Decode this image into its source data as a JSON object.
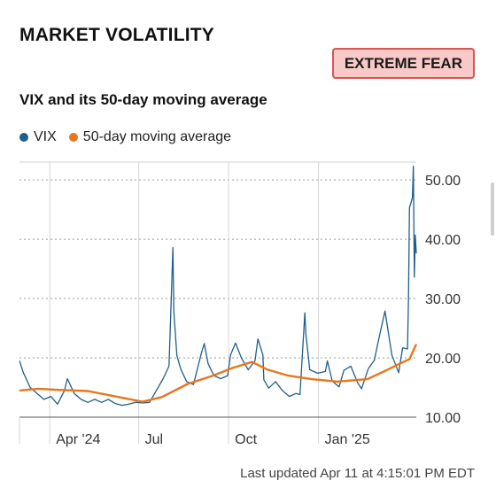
{
  "header": {
    "title": "MARKET VOLATILITY",
    "status_badge": "EXTREME FEAR"
  },
  "colors": {
    "vix": "#1f5f8b",
    "ma": "#e8761c",
    "badge_bg": "#f8c9c6",
    "badge_border": "#d9534f"
  },
  "chart_data": {
    "type": "line",
    "title": "VIX and its 50-day moving average",
    "legend_position": "top-left",
    "grid": true,
    "y_axis": {
      "side": "right",
      "ticks": [
        "50.00",
        "40.00",
        "30.00",
        "20.00",
        "10.00"
      ],
      "ylim": [
        10,
        53
      ]
    },
    "x_axis": {
      "range": [
        "2024-03-01",
        "2025-04-11"
      ],
      "ticks": [
        {
          "date": "2024-04-01",
          "label": "Apr '24"
        },
        {
          "date": "2024-07-01",
          "label": "Jul"
        },
        {
          "date": "2024-10-01",
          "label": "Oct"
        },
        {
          "date": "2025-01-01",
          "label": "Jan '25"
        }
      ]
    },
    "series": [
      {
        "name": "VIX",
        "points": [
          [
            "2024-03-01",
            19.5
          ],
          [
            "2024-03-05",
            17.5
          ],
          [
            "2024-03-12",
            15.0
          ],
          [
            "2024-03-19",
            14.0
          ],
          [
            "2024-03-26",
            13.0
          ],
          [
            "2024-04-02",
            13.5
          ],
          [
            "2024-04-09",
            12.2
          ],
          [
            "2024-04-16",
            14.5
          ],
          [
            "2024-04-19",
            16.5
          ],
          [
            "2024-04-26",
            14.0
          ],
          [
            "2024-05-03",
            13.0
          ],
          [
            "2024-05-10",
            12.5
          ],
          [
            "2024-05-17",
            13.0
          ],
          [
            "2024-05-24",
            12.5
          ],
          [
            "2024-05-31",
            13.0
          ],
          [
            "2024-06-07",
            12.3
          ],
          [
            "2024-06-14",
            12.0
          ],
          [
            "2024-06-21",
            12.2
          ],
          [
            "2024-06-28",
            12.5
          ],
          [
            "2024-07-05",
            12.4
          ],
          [
            "2024-07-12",
            12.5
          ],
          [
            "2024-07-19",
            14.5
          ],
          [
            "2024-07-26",
            16.5
          ],
          [
            "2024-08-01",
            18.6
          ],
          [
            "2024-08-02",
            23.4
          ],
          [
            "2024-08-05",
            38.6
          ],
          [
            "2024-08-06",
            27.7
          ],
          [
            "2024-08-09",
            20.4
          ],
          [
            "2024-08-13",
            18.1
          ],
          [
            "2024-08-19",
            16.0
          ],
          [
            "2024-08-26",
            15.5
          ],
          [
            "2024-09-03",
            20.7
          ],
          [
            "2024-09-06",
            22.4
          ],
          [
            "2024-09-10",
            19.0
          ],
          [
            "2024-09-16",
            17.0
          ],
          [
            "2024-09-23",
            16.5
          ],
          [
            "2024-09-30",
            17.0
          ],
          [
            "2024-10-03",
            20.5
          ],
          [
            "2024-10-08",
            22.5
          ],
          [
            "2024-10-14",
            20.0
          ],
          [
            "2024-10-21",
            18.0
          ],
          [
            "2024-10-28",
            19.5
          ],
          [
            "2024-10-31",
            23.2
          ],
          [
            "2024-11-05",
            20.5
          ],
          [
            "2024-11-06",
            16.3
          ],
          [
            "2024-11-11",
            14.9
          ],
          [
            "2024-11-18",
            16.0
          ],
          [
            "2024-11-25",
            14.5
          ],
          [
            "2024-12-02",
            13.5
          ],
          [
            "2024-12-09",
            14.0
          ],
          [
            "2024-12-13",
            13.8
          ],
          [
            "2024-12-18",
            27.6
          ],
          [
            "2024-12-19",
            24.1
          ],
          [
            "2024-12-23",
            18.0
          ],
          [
            "2024-12-31",
            17.4
          ],
          [
            "2025-01-08",
            17.7
          ],
          [
            "2025-01-10",
            19.5
          ],
          [
            "2025-01-15",
            16.1
          ],
          [
            "2025-01-22",
            15.1
          ],
          [
            "2025-01-27",
            17.9
          ],
          [
            "2025-02-03",
            18.6
          ],
          [
            "2025-02-10",
            15.8
          ],
          [
            "2025-02-14",
            14.8
          ],
          [
            "2025-02-21",
            18.2
          ],
          [
            "2025-02-27",
            19.6
          ],
          [
            "2025-03-04",
            23.5
          ],
          [
            "2025-03-10",
            27.9
          ],
          [
            "2025-03-13",
            24.7
          ],
          [
            "2025-03-17",
            20.5
          ],
          [
            "2025-03-24",
            17.5
          ],
          [
            "2025-03-28",
            21.7
          ],
          [
            "2025-04-02",
            21.5
          ],
          [
            "2025-04-03",
            30.0
          ],
          [
            "2025-04-04",
            45.3
          ],
          [
            "2025-04-07",
            46.98
          ],
          [
            "2025-04-08",
            52.3
          ],
          [
            "2025-04-09",
            33.6
          ],
          [
            "2025-04-10",
            40.7
          ],
          [
            "2025-04-11",
            37.6
          ]
        ]
      },
      {
        "name": "50-day moving average",
        "points": [
          [
            "2024-03-01",
            14.5
          ],
          [
            "2024-03-20",
            14.8
          ],
          [
            "2024-04-10",
            14.6
          ],
          [
            "2024-05-10",
            14.4
          ],
          [
            "2024-06-10",
            13.4
          ],
          [
            "2024-07-05",
            12.6
          ],
          [
            "2024-07-25",
            13.4
          ],
          [
            "2024-08-20",
            15.6
          ],
          [
            "2024-09-15",
            17.0
          ],
          [
            "2024-10-05",
            18.3
          ],
          [
            "2024-10-25",
            19.3
          ],
          [
            "2024-11-10",
            18.0
          ],
          [
            "2024-12-01",
            17.0
          ],
          [
            "2024-12-25",
            16.4
          ],
          [
            "2025-01-20",
            16.0
          ],
          [
            "2025-02-20",
            16.4
          ],
          [
            "2025-03-10",
            17.8
          ],
          [
            "2025-03-25",
            19.0
          ],
          [
            "2025-04-04",
            19.8
          ],
          [
            "2025-04-11",
            22.3
          ]
        ]
      }
    ]
  },
  "footer": {
    "last_updated": "Last updated Apr 11 at 4:15:01 PM EDT"
  }
}
